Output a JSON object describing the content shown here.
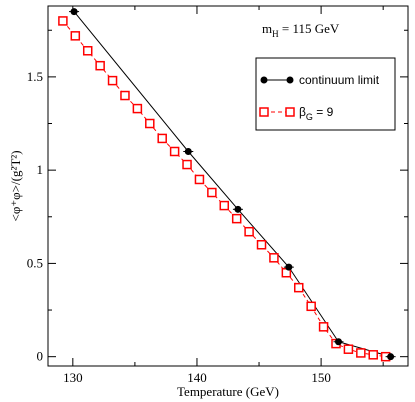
{
  "chart_data": {
    "type": "line",
    "xlabel": "Temperature (GeV)",
    "ylabel": "<φ⁺φ>/(g²T²)",
    "xlim": [
      128,
      157
    ],
    "ylim": [
      -0.05,
      1.88
    ],
    "x_ticks": [
      130,
      140,
      150
    ],
    "y_ticks": [
      0,
      0.5,
      1,
      1.5
    ],
    "x_tick_labels": [
      "130",
      "140",
      "150"
    ],
    "y_tick_labels": [
      "0",
      "0.5",
      "1",
      "1.5"
    ],
    "annotation": {
      "m_symbol": "m",
      "m_sub": "H",
      "text": " = 115 GeV"
    },
    "legend_placement": "top-right",
    "series": [
      {
        "name": "continuum limit",
        "color": "#000000",
        "marker": "filled-circle",
        "x": [
          130.1,
          139.3,
          143.3,
          147.4,
          151.4,
          155.6
        ],
        "y": [
          1.85,
          1.1,
          0.79,
          0.48,
          0.08,
          0.0
        ]
      },
      {
        "name_symbol": "β",
        "name_sub": "G",
        "name_suffix": " = 9",
        "color": "#ff0000",
        "marker": "open-square",
        "x": [
          129.2,
          130.2,
          131.2,
          132.2,
          133.2,
          134.2,
          135.2,
          136.2,
          137.2,
          138.2,
          139.2,
          140.2,
          141.2,
          142.2,
          143.2,
          144.2,
          145.2,
          146.2,
          147.2,
          148.2,
          149.2,
          150.2,
          151.2,
          152.2,
          153.2,
          154.2,
          155.2
        ],
        "y": [
          1.8,
          1.72,
          1.64,
          1.56,
          1.48,
          1.4,
          1.33,
          1.25,
          1.17,
          1.1,
          1.03,
          0.95,
          0.88,
          0.81,
          0.74,
          0.67,
          0.6,
          0.53,
          0.45,
          0.37,
          0.27,
          0.16,
          0.07,
          0.04,
          0.02,
          0.01,
          0.0
        ]
      }
    ]
  }
}
